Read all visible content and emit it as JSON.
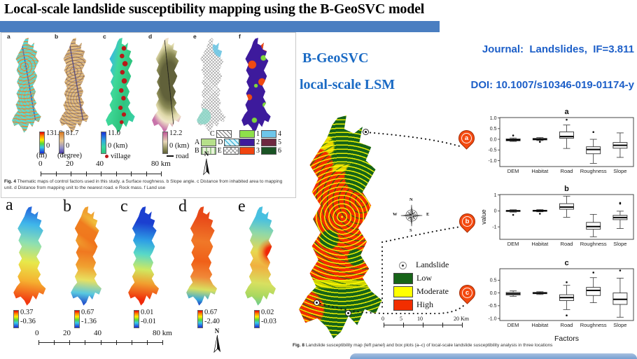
{
  "slide": {
    "title": "Local-scale landslide susceptibility mapping using the B-GeoSVC model",
    "journal": "Journal:  Landslides,  IF=3.811",
    "doi": "DOI: 10.1007/s10346-019-01174-y",
    "keyword1": "B-GeoSVC",
    "keyword2": "local-scale LSM"
  },
  "palette": {
    "header_bar": "#4a7ec1",
    "journal_text": "#1d5fc8",
    "keyword_text": "#1a6ac4",
    "pin": "#f4490f",
    "low": "#176418",
    "moderate": "#ffff00",
    "high": "#f22e00"
  },
  "fig4": {
    "maps": [
      {
        "label": "a",
        "cb_max": "131.9",
        "cb_min": "0",
        "unit": "(m)"
      },
      {
        "label": "b",
        "cb_max": "81.7",
        "cb_min": "0",
        "unit": "(degree)"
      },
      {
        "label": "c",
        "cb_max": "11.0",
        "cb_min": "0 (km)",
        "marker": "village"
      },
      {
        "label": "d",
        "cb_max": "12.2",
        "cb_min": "0  (km)",
        "marker": "road"
      },
      {
        "label": "e"
      },
      {
        "label": "f"
      }
    ],
    "rock_legend": {
      "a": "A",
      "b": "B",
      "c": "C",
      "d": "D",
      "e": "E"
    },
    "landuse_legend": [
      "1",
      "2",
      "3",
      "4",
      "5",
      "6"
    ],
    "scalebar_labels": [
      "0",
      "20",
      "40",
      "80 km"
    ],
    "north": "N",
    "caption_tag": "Fig. 4",
    "caption": "Thematic maps of control factors used in this study. a Surface roughness. b Slope angle. c Distance from inhabited area to mapping unit. d Distance from mapping unit to the nearest road. e Rock mass. f Land use"
  },
  "figsvc": {
    "maps": [
      {
        "label": "a",
        "cb_max": "0.37",
        "cb_min": "-0.36"
      },
      {
        "label": "b",
        "cb_max": "0.67",
        "cb_min": "-1.36"
      },
      {
        "label": "c",
        "cb_max": "0.01",
        "cb_min": "-0.01"
      },
      {
        "label": "d",
        "cb_max": "0.67",
        "cb_min": "-2.40"
      },
      {
        "label": "e",
        "cb_max": "0.02",
        "cb_min": "-0.03"
      }
    ],
    "scalebar_labels": [
      "0",
      "20",
      "40",
      "80 km"
    ],
    "north": "N"
  },
  "fig8": {
    "legend": {
      "landslide": "Landslide",
      "low": "Low",
      "moderate": "Moderate",
      "high": "High"
    },
    "pins": [
      "a",
      "b",
      "c"
    ],
    "compass": {
      "n": "N",
      "e": "E",
      "s": "S",
      "w": "W"
    },
    "scalebar_labels": [
      "0",
      "5",
      "10",
      "20 Km"
    ],
    "caption_tag": "Fig. 8",
    "caption": "Landslide susceptibility map (left panel) and box plots (a–c) of local-scale landslide susceptibility analysis in three locations"
  },
  "chart_data": [
    {
      "type": "boxplot",
      "title": "a",
      "ylabel": "",
      "xlabel": "",
      "categories": [
        "DEM",
        "Habitat",
        "Road",
        "Roughness",
        "Slope"
      ],
      "ylim": [
        -1.28,
        1.02
      ],
      "yticks": [
        1.0,
        0.5,
        0.0,
        -0.5,
        -1.0
      ],
      "ytick_labels": [
        "1.0",
        "0.5",
        "0.0",
        "-0.5",
        "-1.0"
      ],
      "boxes": [
        {
          "low": -0.1,
          "q1": -0.07,
          "median": -0.03,
          "q3": 0.02,
          "high": 0.06,
          "outliers": [
            0.18
          ]
        },
        {
          "low": -0.06,
          "q1": -0.03,
          "median": 0.01,
          "q3": 0.04,
          "high": 0.08,
          "outliers": [
            -0.12
          ]
        },
        {
          "low": -0.43,
          "q1": 0.05,
          "median": 0.13,
          "q3": 0.35,
          "high": 0.67,
          "outliers": [
            0.92
          ]
        },
        {
          "low": -1.13,
          "q1": -0.68,
          "median": -0.48,
          "q3": -0.35,
          "high": 0.0,
          "outliers": [
            0.34
          ]
        },
        {
          "low": -0.85,
          "q1": -0.42,
          "median": -0.28,
          "q3": -0.15,
          "high": 0.3,
          "outliers": []
        }
      ]
    },
    {
      "type": "boxplot",
      "title": "b",
      "ylabel": "value",
      "xlabel": "",
      "categories": [
        "DEM",
        "Habitat",
        "Road",
        "Roughness",
        "Slope"
      ],
      "ylim": [
        -1.78,
        1.02
      ],
      "yticks": [
        1,
        0,
        -1
      ],
      "ytick_labels": [
        "1",
        "0",
        "-1"
      ],
      "boxes": [
        {
          "low": -0.08,
          "q1": -0.04,
          "median": 0.0,
          "q3": 0.03,
          "high": 0.07,
          "outliers": [
            -0.25
          ]
        },
        {
          "low": -0.06,
          "q1": -0.03,
          "median": 0.01,
          "q3": 0.04,
          "high": 0.08,
          "outliers": [
            -0.18
          ]
        },
        {
          "low": -0.4,
          "q1": 0.1,
          "median": 0.24,
          "q3": 0.45,
          "high": 0.92,
          "outliers": []
        },
        {
          "low": -1.62,
          "q1": -1.15,
          "median": -0.98,
          "q3": -0.72,
          "high": -0.22,
          "outliers": []
        },
        {
          "low": -1.1,
          "q1": -0.55,
          "median": -0.42,
          "q3": -0.28,
          "high": -0.02,
          "outliers": [
            0.45,
            0.5
          ]
        }
      ]
    },
    {
      "type": "boxplot",
      "title": "c",
      "ylabel": "",
      "xlabel": "Factors",
      "categories": [
        "DEM",
        "Habitat",
        "Road",
        "Roughness",
        "Slope"
      ],
      "ylim": [
        -1.08,
        0.95
      ],
      "yticks": [
        0.5,
        0.0,
        -0.5,
        -1.0
      ],
      "ytick_labels": [
        "0.5",
        "0.0",
        "-0.5",
        "-1.0"
      ],
      "boxes": [
        {
          "low": -0.13,
          "q1": -0.08,
          "median": -0.03,
          "q3": 0.02,
          "high": 0.08,
          "outliers": []
        },
        {
          "low": -0.06,
          "q1": -0.03,
          "median": 0.0,
          "q3": 0.02,
          "high": 0.05,
          "outliers": []
        },
        {
          "low": -0.65,
          "q1": -0.3,
          "median": -0.18,
          "q3": -0.07,
          "high": 0.3,
          "outliers": [
            0.42,
            -0.88
          ]
        },
        {
          "low": -0.38,
          "q1": -0.1,
          "median": 0.1,
          "q3": 0.22,
          "high": 0.6,
          "outliers": [
            0.8
          ]
        },
        {
          "low": -0.95,
          "q1": -0.45,
          "median": -0.25,
          "q3": 0.0,
          "high": 0.58,
          "outliers": [
            0.88
          ]
        }
      ]
    }
  ]
}
